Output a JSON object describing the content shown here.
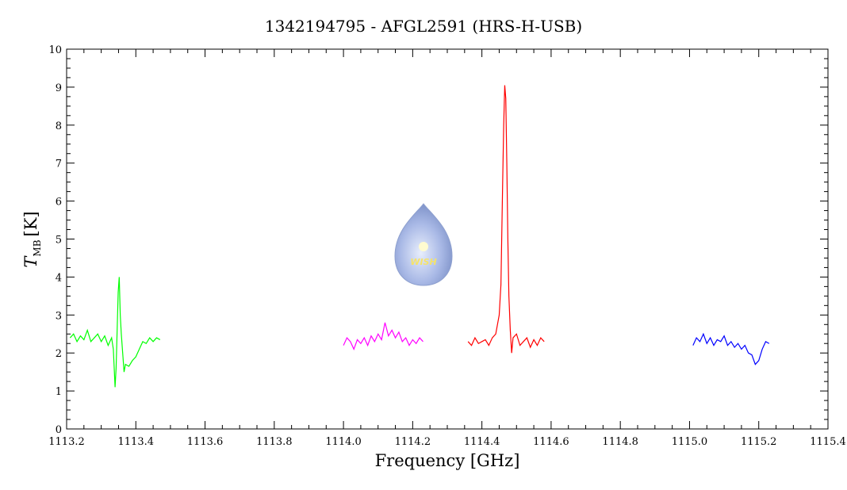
{
  "chart_data": {
    "type": "line",
    "title": "1342194795 - AFGL2591 (HRS-H-USB)",
    "xlabel": "Frequency [GHz]",
    "ylabel": "T",
    "ylabel_sub": "MB",
    "ylabel_unit": "[K]",
    "logo_text": "WISH",
    "xlim": [
      1113.2,
      1115.4
    ],
    "ylim": [
      0,
      10
    ],
    "xticks": [
      1113.2,
      1113.4,
      1113.6,
      1113.8,
      {
        "value": 1114.0,
        "label": "1114.0"
      },
      1114.2,
      1114.4,
      1114.6,
      1114.8,
      {
        "value": 1115.0,
        "label": "1115.0"
      },
      1115.2,
      1115.4
    ],
    "yticks": [
      0,
      1,
      2,
      3,
      4,
      5,
      6,
      7,
      8,
      9,
      10
    ],
    "grid": false,
    "series": [
      {
        "color": "#00ff00",
        "x": [
          1113.21,
          1113.22,
          1113.23,
          1113.24,
          1113.25,
          1113.26,
          1113.27,
          1113.28,
          1113.29,
          1113.3,
          1113.31,
          1113.32,
          1113.33,
          1113.335,
          1113.34,
          1113.343,
          1113.346,
          1113.349,
          1113.352,
          1113.355,
          1113.358,
          1113.362,
          1113.366,
          1113.37,
          1113.38,
          1113.39,
          1113.4,
          1113.41,
          1113.42,
          1113.43,
          1113.44,
          1113.45,
          1113.46,
          1113.47
        ],
        "values": [
          2.4,
          2.5,
          2.3,
          2.45,
          2.35,
          2.6,
          2.3,
          2.4,
          2.5,
          2.3,
          2.45,
          2.2,
          2.4,
          2.1,
          1.1,
          1.6,
          2.6,
          3.6,
          4.0,
          3.0,
          2.5,
          2.0,
          1.5,
          1.7,
          1.65,
          1.8,
          1.9,
          2.1,
          2.3,
          2.25,
          2.4,
          2.3,
          2.4,
          2.35
        ]
      },
      {
        "color": "#ff00ff",
        "x": [
          1114.0,
          1114.01,
          1114.02,
          1114.03,
          1114.04,
          1114.05,
          1114.06,
          1114.07,
          1114.08,
          1114.09,
          1114.1,
          1114.11,
          1114.12,
          1114.13,
          1114.14,
          1114.15,
          1114.16,
          1114.17,
          1114.18,
          1114.19,
          1114.2,
          1114.21,
          1114.22,
          1114.23
        ],
        "values": [
          2.2,
          2.4,
          2.3,
          2.1,
          2.35,
          2.25,
          2.4,
          2.2,
          2.45,
          2.3,
          2.5,
          2.35,
          2.8,
          2.45,
          2.6,
          2.4,
          2.55,
          2.3,
          2.4,
          2.2,
          2.35,
          2.25,
          2.4,
          2.3
        ]
      },
      {
        "color": "#ff0000",
        "x": [
          1114.36,
          1114.37,
          1114.38,
          1114.39,
          1114.4,
          1114.41,
          1114.42,
          1114.43,
          1114.44,
          1114.45,
          1114.455,
          1114.46,
          1114.463,
          1114.466,
          1114.469,
          1114.472,
          1114.475,
          1114.478,
          1114.482,
          1114.486,
          1114.49,
          1114.5,
          1114.51,
          1114.52,
          1114.53,
          1114.54,
          1114.55,
          1114.56,
          1114.57,
          1114.58
        ],
        "values": [
          2.3,
          2.2,
          2.4,
          2.25,
          2.3,
          2.35,
          2.2,
          2.4,
          2.5,
          3.0,
          3.8,
          6.5,
          8.0,
          9.05,
          8.7,
          7.0,
          5.0,
          3.5,
          2.6,
          2.0,
          2.4,
          2.5,
          2.2,
          2.3,
          2.4,
          2.15,
          2.35,
          2.2,
          2.4,
          2.3
        ]
      },
      {
        "color": "#0000ff",
        "x": [
          1115.01,
          1115.02,
          1115.03,
          1115.04,
          1115.05,
          1115.06,
          1115.07,
          1115.08,
          1115.09,
          1115.1,
          1115.11,
          1115.12,
          1115.13,
          1115.14,
          1115.15,
          1115.16,
          1115.17,
          1115.18,
          1115.19,
          1115.2,
          1115.21,
          1115.22,
          1115.23
        ],
        "values": [
          2.2,
          2.4,
          2.3,
          2.5,
          2.25,
          2.4,
          2.2,
          2.35,
          2.3,
          2.45,
          2.2,
          2.3,
          2.15,
          2.25,
          2.1,
          2.2,
          2.0,
          1.95,
          1.7,
          1.8,
          2.1,
          2.3,
          2.25
        ]
      }
    ]
  }
}
